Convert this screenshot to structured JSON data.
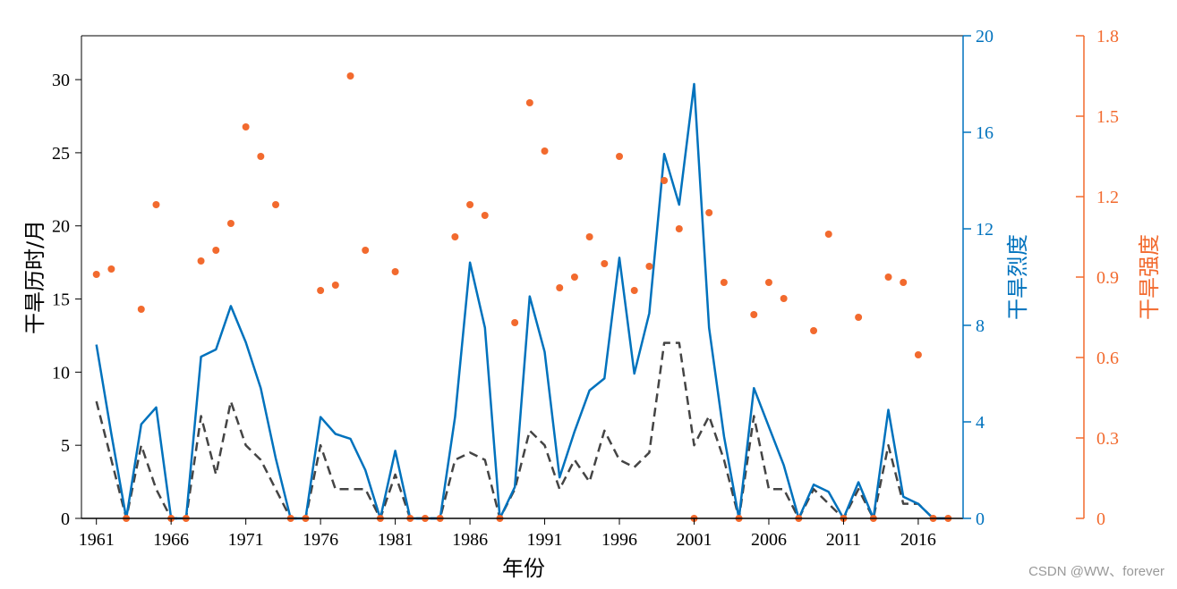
{
  "chart_data": {
    "type": "line",
    "xlabel": "年份",
    "ylabel_left": "干旱历时/月",
    "ylabel_right1": "干旱烈度",
    "ylabel_right2": "干旱强度",
    "colors": {
      "duration": "#444444",
      "severity": "#0072bd",
      "intensity": "#f26a2e",
      "axis": "#000000"
    },
    "x_ticks": [
      1961,
      1966,
      1971,
      1976,
      1981,
      1986,
      1991,
      1996,
      2001,
      2006,
      2011,
      2016
    ],
    "x_range": [
      1960,
      2019
    ],
    "left_axis": {
      "range": [
        0,
        33
      ],
      "ticks": [
        0,
        5,
        10,
        15,
        20,
        25,
        30
      ]
    },
    "right1_axis": {
      "range": [
        0,
        20
      ],
      "ticks": [
        0,
        4,
        8,
        12,
        16,
        20
      ]
    },
    "right2_axis": {
      "range": [
        0,
        1.8
      ],
      "ticks": [
        "0",
        "0.3",
        "0.6",
        "0.9",
        "1.2",
        "1.5",
        "1.8"
      ]
    },
    "years": [
      1961,
      1962,
      1963,
      1964,
      1965,
      1966,
      1967,
      1968,
      1969,
      1970,
      1971,
      1972,
      1973,
      1974,
      1975,
      1976,
      1977,
      1978,
      1979,
      1980,
      1981,
      1982,
      1983,
      1984,
      1985,
      1986,
      1987,
      1988,
      1989,
      1990,
      1991,
      1992,
      1993,
      1994,
      1995,
      1996,
      1997,
      1998,
      1999,
      2000,
      2001,
      2002,
      2003,
      2004,
      2005,
      2006,
      2007,
      2008,
      2009,
      2010,
      2011,
      2012,
      2013,
      2014,
      2015,
      2016,
      2017,
      2018
    ],
    "series": [
      {
        "name": "干旱历时",
        "axis": "left",
        "style": "dashed",
        "values": [
          8,
          4,
          0,
          5,
          2,
          0,
          0,
          7,
          3,
          8,
          5,
          4,
          2,
          0,
          0,
          5,
          2,
          2,
          2,
          0,
          3,
          0,
          0,
          0,
          4,
          4.5,
          4,
          0,
          2,
          6,
          5,
          2,
          4,
          2.5,
          6,
          4,
          3.5,
          4.5,
          12,
          12,
          5,
          7,
          4,
          0,
          7,
          2,
          2,
          0,
          2,
          1,
          0,
          2,
          0,
          5,
          1,
          1,
          0,
          0
        ]
      },
      {
        "name": "干旱烈度",
        "axis": "right1",
        "style": "solid",
        "values": [
          7.2,
          3.5,
          0,
          3.9,
          4.6,
          0,
          0,
          6.7,
          7,
          8.8,
          7.3,
          5.4,
          2.5,
          0,
          0,
          4.2,
          3.5,
          3.3,
          2,
          0,
          2.8,
          0,
          0,
          0,
          4.2,
          10.6,
          7.9,
          0,
          1.3,
          9.2,
          6.9,
          1.7,
          3.6,
          5.3,
          5.8,
          10.8,
          6,
          8.5,
          15.1,
          13,
          18,
          7.9,
          3.4,
          0,
          5.4,
          3.8,
          2.2,
          0,
          1.4,
          1.1,
          0,
          1.5,
          0,
          4.5,
          0.9,
          0.6,
          0,
          0
        ]
      },
      {
        "name": "干旱强度",
        "axis": "right2",
        "style": "markers",
        "values": [
          0.91,
          0.93,
          0,
          0.78,
          1.17,
          0,
          0,
          0.96,
          1,
          1.1,
          1.46,
          1.35,
          1.17,
          0,
          0,
          0.85,
          0.87,
          1.65,
          1,
          0,
          0.92,
          0,
          0,
          0,
          1.05,
          1.17,
          1.13,
          0,
          0.73,
          1.55,
          1.37,
          0.86,
          0.9,
          1.05,
          0.95,
          1.35,
          0.85,
          0.94,
          1.26,
          1.08,
          0,
          1.14,
          0.88,
          0,
          0.76,
          0.88,
          0.82,
          0,
          0.7,
          1.06,
          0,
          0.75,
          0,
          0.9,
          0.88,
          0.61,
          0,
          0
        ]
      }
    ]
  },
  "watermark": "CSDN @WW、forever"
}
